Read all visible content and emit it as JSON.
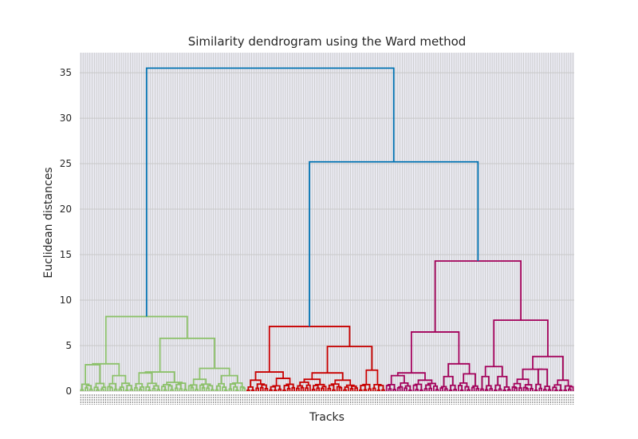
{
  "chart_data": {
    "type": "dendrogram",
    "title": "Similarity dendrogram using the Ward method",
    "xlabel": "Tracks",
    "ylabel": "Euclidean distances",
    "ylim": [
      0,
      37.2
    ],
    "yticks": [
      0,
      5,
      10,
      15,
      20,
      25,
      30,
      35
    ],
    "grid": true,
    "background": "#eaeaf2",
    "colors": {
      "link_top": "#0072b2",
      "cluster_green": "#8cc16a",
      "cluster_red": "#c80000",
      "cluster_magenta": "#a3005a",
      "grid": "#c8c8c8"
    },
    "leaf_count": 220,
    "clusters": [
      {
        "name": "green",
        "leaf_range": [
          0,
          74
        ],
        "height": 8.2
      },
      {
        "name": "red",
        "leaf_range": [
          74,
          136
        ],
        "height": 7.1
      },
      {
        "name": "magenta",
        "leaf_range": [
          136,
          220
        ],
        "height": 14.3
      }
    ],
    "merges": [
      {
        "left": "green",
        "right": "red+magenta",
        "height": 35.5
      },
      {
        "left": "red",
        "right": "magenta",
        "height": 25.2
      }
    ]
  }
}
